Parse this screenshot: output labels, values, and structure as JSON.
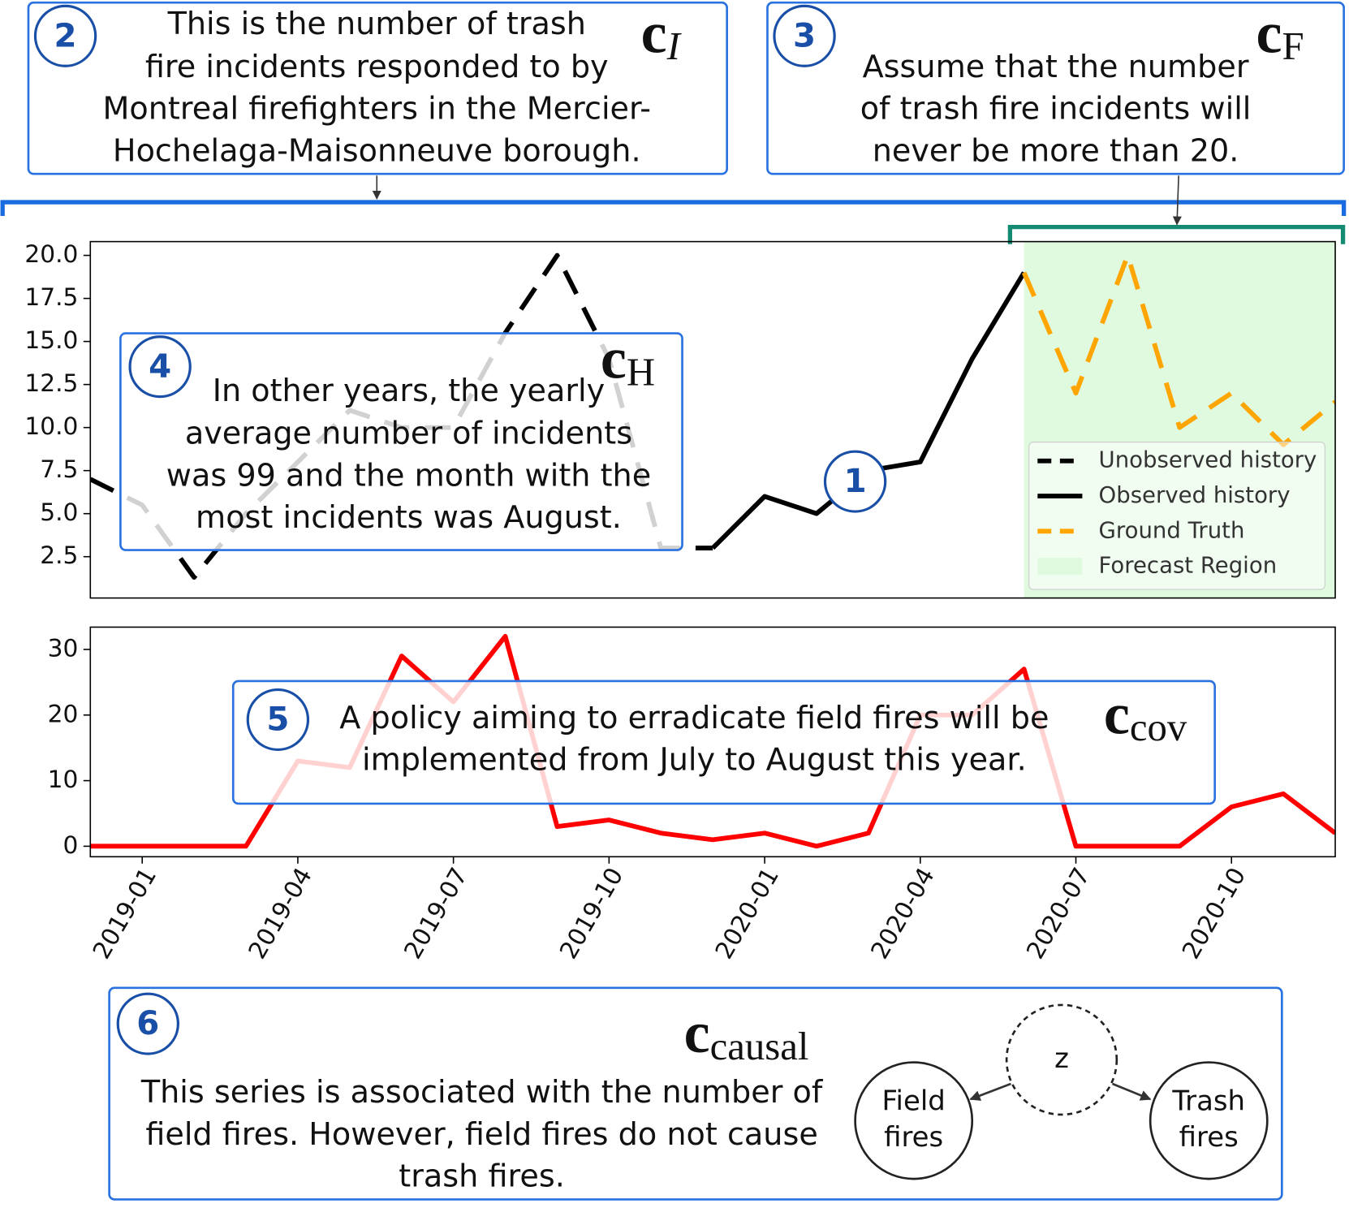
{
  "chart_data": [
    {
      "type": "line",
      "x": [
        "2018-12",
        "2019-01",
        "2019-02",
        "2019-03",
        "2019-04",
        "2019-05",
        "2019-06",
        "2019-07",
        "2019-08",
        "2019-09",
        "2019-10",
        "2019-11",
        "2019-12",
        "2020-01",
        "2020-02",
        "2020-03",
        "2020-04",
        "2020-05",
        "2020-06",
        "2020-07",
        "2020-08",
        "2020-09",
        "2020-10",
        "2020-11",
        "2020-12"
      ],
      "ylim": [
        0.1,
        20.8
      ],
      "yticks": [
        2.5,
        {
          "value": 5,
          "label": "5.0"
        },
        7.5,
        {
          "value": 10,
          "label": "10.0"
        },
        12.5,
        {
          "value": 15,
          "label": "15.0"
        },
        17.5,
        {
          "value": 20,
          "label": "20.0"
        }
      ],
      "series": [
        {
          "name": "Unobserved history",
          "color": "#000000",
          "style": "dashed",
          "values": [
            7,
            5.5,
            1.3,
            5,
            8,
            11,
            10,
            10,
            15.5,
            20,
            14,
            3,
            3,
            null,
            null,
            null,
            null,
            null,
            null,
            null,
            null,
            null,
            null,
            null,
            null
          ]
        },
        {
          "name": "Observed history",
          "color": "#000000",
          "style": "solid",
          "values": [
            null,
            null,
            null,
            null,
            null,
            null,
            null,
            null,
            null,
            null,
            null,
            null,
            3,
            6,
            5,
            7.5,
            8,
            14,
            19,
            null,
            null,
            null,
            null,
            null,
            null
          ]
        },
        {
          "name": "Ground Truth",
          "color": "#ffa500",
          "style": "dashed",
          "values": [
            null,
            null,
            null,
            null,
            null,
            null,
            null,
            null,
            null,
            null,
            null,
            null,
            null,
            null,
            null,
            null,
            null,
            null,
            19,
            12,
            20,
            10,
            12,
            9,
            11.5
          ]
        }
      ],
      "region": {
        "name": "Forecast Region",
        "color": "#e0fae0"
      },
      "legend": "lower right"
    },
    {
      "type": "line",
      "x": [
        "2018-12",
        "2019-01",
        "2019-02",
        "2019-03",
        "2019-04",
        "2019-05",
        "2019-06",
        "2019-07",
        "2019-08",
        "2019-09",
        "2019-10",
        "2019-11",
        "2019-12",
        "2020-01",
        "2020-02",
        "2020-03",
        "2020-04",
        "2020-05",
        "2020-06",
        "2020-07",
        "2020-08",
        "2020-09",
        "2020-10",
        "2020-11",
        "2020-12"
      ],
      "xticks": [
        "2019-01",
        "2019-04",
        "2019-07",
        "2019-10",
        "2020-01",
        "2020-04",
        "2020-07",
        "2020-10"
      ],
      "ylim": [
        -1.6,
        33.4
      ],
      "yticks": [
        0,
        10,
        20,
        30
      ],
      "series": [
        {
          "color": "#ff0000",
          "style": "solid",
          "values": [
            0,
            0,
            0,
            0,
            13,
            12,
            29,
            22,
            32,
            3,
            4,
            2,
            1,
            2,
            0,
            2,
            20,
            20,
            27,
            0,
            0,
            0,
            6,
            8,
            2
          ]
        }
      ]
    }
  ],
  "annotations": [
    {
      "number": "1"
    },
    {
      "number": "2",
      "symbol": {
        "base": "c",
        "sub": "I"
      },
      "lines": [
        "This is the number of trash",
        "fire incidents responded to by",
        "Montreal firefighters in the Mercier-",
        "Hochelaga-Maisonneuve borough."
      ]
    },
    {
      "number": "3",
      "symbol": {
        "base": "c",
        "sub": "F"
      },
      "lines": [
        "Assume that the number",
        "of trash fire incidents will",
        "never be more than 20."
      ]
    },
    {
      "number": "4",
      "symbol": {
        "base": "c",
        "sub": "H"
      },
      "lines": [
        "In other years, the yearly",
        "average number of incidents",
        "was 99 and the month with the",
        "most incidents was August."
      ]
    },
    {
      "number": "5",
      "symbol": {
        "base": "c",
        "sub": "cov"
      },
      "lines": [
        "A policy aiming to erradicate field fires will be",
        "implemented from July to August this year."
      ]
    },
    {
      "number": "6",
      "symbol": {
        "base": "c",
        "sub": "causal"
      },
      "lines": [
        "This series is associated with the number of",
        "field fires. However, field fires do not cause",
        "trash fires."
      ]
    }
  ],
  "diagram": {
    "nodes": [
      {
        "label": [
          "z"
        ]
      },
      {
        "label": [
          "Field",
          "fires"
        ]
      },
      {
        "label": [
          "Trash",
          "fires"
        ]
      }
    ]
  }
}
